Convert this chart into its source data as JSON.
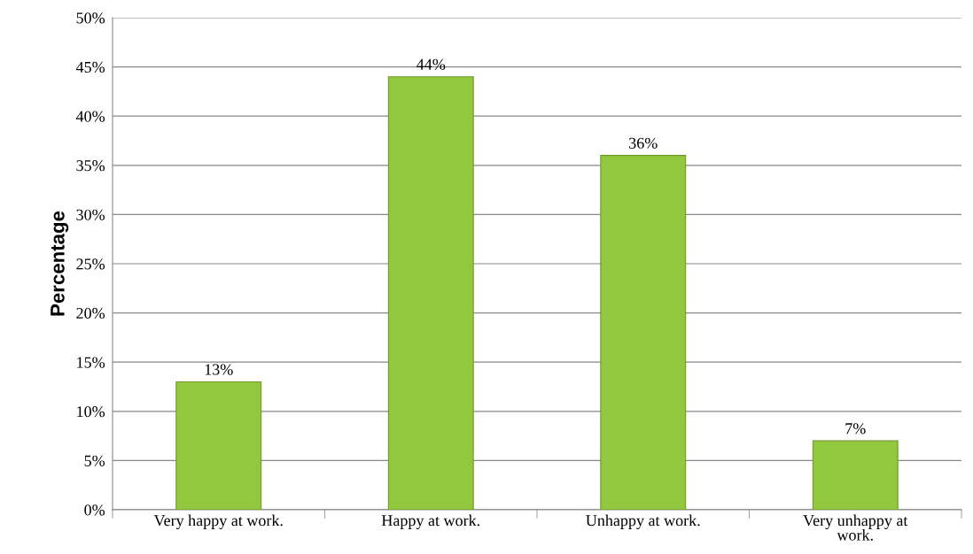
{
  "chart_data": {
    "type": "bar",
    "ylabel": "Percentage",
    "categories": [
      "Very happy at work.",
      "Happy at work.",
      "Unhappy at work.",
      "Very unhappy at\nwork."
    ],
    "values": [
      13,
      44,
      36,
      7
    ],
    "color": "#92c83e",
    "value_labels": [
      "13%",
      "44%",
      "36%",
      "7%"
    ],
    "ylim": [
      0,
      50
    ],
    "yticks": [
      {
        "value": 0,
        "label": "0%"
      },
      {
        "value": 5,
        "label": "5%"
      },
      {
        "value": 10,
        "label": "10%"
      },
      {
        "value": 15,
        "label": "15%"
      },
      {
        "value": 20,
        "label": "20%"
      },
      {
        "value": 25,
        "label": "25%"
      },
      {
        "value": 30,
        "label": "30%"
      },
      {
        "value": 35,
        "label": "35%"
      },
      {
        "value": 40,
        "label": "40%"
      },
      {
        "value": 45,
        "label": "45%"
      },
      {
        "value": 50,
        "label": "50%"
      }
    ],
    "grid": "y"
  }
}
